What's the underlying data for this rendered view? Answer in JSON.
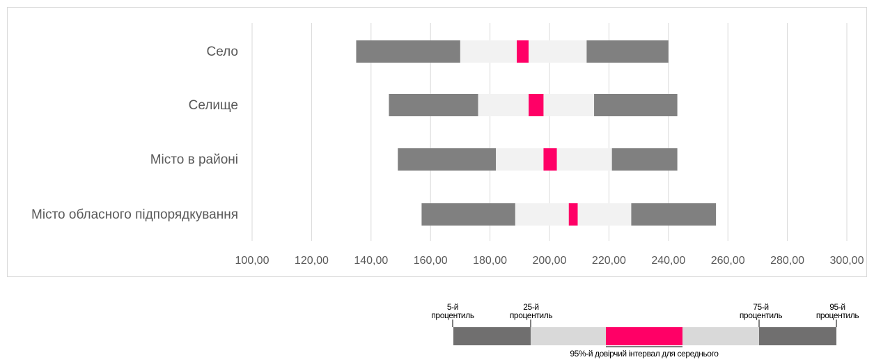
{
  "chart_data": {
    "type": "boxplot-horizontal",
    "categories": [
      "Село",
      "Селище",
      "Місто в районі",
      "Місто обласного підпорядкування"
    ],
    "xlim": [
      100,
      300
    ],
    "x_ticks": [
      "100,00",
      "120,00",
      "140,00",
      "160,00",
      "180,00",
      "200,00",
      "220,00",
      "240,00",
      "260,00",
      "280,00",
      "300,00"
    ],
    "series": [
      {
        "p5": 135.0,
        "p25": 170.0,
        "ci_low": 189.0,
        "ci_high": 193.0,
        "p75": 212.5,
        "p95": 240.0
      },
      {
        "p5": 146.0,
        "p25": 176.0,
        "ci_low": 193.0,
        "ci_high": 198.0,
        "p75": 215.0,
        "p95": 243.0
      },
      {
        "p5": 149.0,
        "p25": 182.0,
        "ci_low": 198.0,
        "ci_high": 202.5,
        "p75": 221.0,
        "p95": 243.0
      },
      {
        "p5": 157.0,
        "p25": 188.5,
        "ci_low": 206.5,
        "ci_high": 209.5,
        "p75": 227.5,
        "p95": 256.0
      }
    ],
    "grid": true,
    "colors": {
      "outer": "#808080",
      "inner": "#f2f2f2",
      "ci": "#ff0066",
      "grid": "#d9d9d9"
    }
  },
  "legend": {
    "p5_label": [
      "5-й",
      "процентиль"
    ],
    "p25_label": [
      "25-й",
      "процентиль"
    ],
    "p75_label": [
      "75-й",
      "процентиль"
    ],
    "p95_label": [
      "95-й",
      "процентиль"
    ],
    "ci_label": "95%-й довірчий інтервал для середнього",
    "colors": {
      "outer": "#706f6f",
      "inner": "#d9d9d9",
      "ci": "#ff0066"
    }
  }
}
